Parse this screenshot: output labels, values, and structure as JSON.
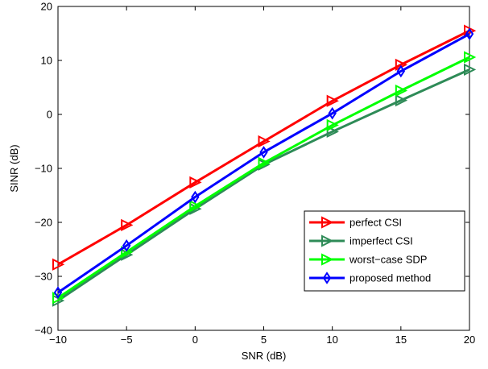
{
  "chart_data": {
    "type": "line",
    "title": "",
    "xlabel": "SNR (dB)",
    "ylabel": "SINR (dB)",
    "xlim": [
      -10,
      20
    ],
    "ylim": [
      -40,
      20
    ],
    "x": [
      -10,
      -5,
      0,
      5,
      10,
      15,
      20
    ],
    "x_ticks": [
      "−10",
      "−5",
      "0",
      "5",
      "10",
      "15",
      "20"
    ],
    "y_ticks": [
      "−40",
      "−30",
      "−20",
      "−10",
      "0",
      "10",
      "20"
    ],
    "x_tick_values": [
      -10,
      -5,
      0,
      5,
      10,
      15,
      20
    ],
    "y_tick_values": [
      -40,
      -30,
      -20,
      -10,
      0,
      10,
      20
    ],
    "grid": false,
    "legend_position": "bottom-right",
    "series": [
      {
        "name": "perfect CSI",
        "color": "#ff0000",
        "marker": "triangle-right",
        "values": [
          -27.8,
          -20.5,
          -12.6,
          -5.0,
          2.5,
          9.2,
          15.5
        ]
      },
      {
        "name": "imperfect CSI",
        "color": "#2e8b57",
        "marker": "triangle-right",
        "values": [
          -34.5,
          -26.0,
          -17.5,
          -9.3,
          -3.2,
          2.6,
          8.3
        ]
      },
      {
        "name": "worst−case SDP",
        "color": "#00ff00",
        "marker": "triangle-right",
        "values": [
          -34.0,
          -25.5,
          -17.0,
          -9.0,
          -2.0,
          4.4,
          10.6
        ]
      },
      {
        "name": "proposed method",
        "color": "#0000ff",
        "marker": "diamond",
        "values": [
          -33.0,
          -24.3,
          -15.3,
          -7.0,
          0.2,
          8.0,
          14.9
        ]
      }
    ]
  }
}
